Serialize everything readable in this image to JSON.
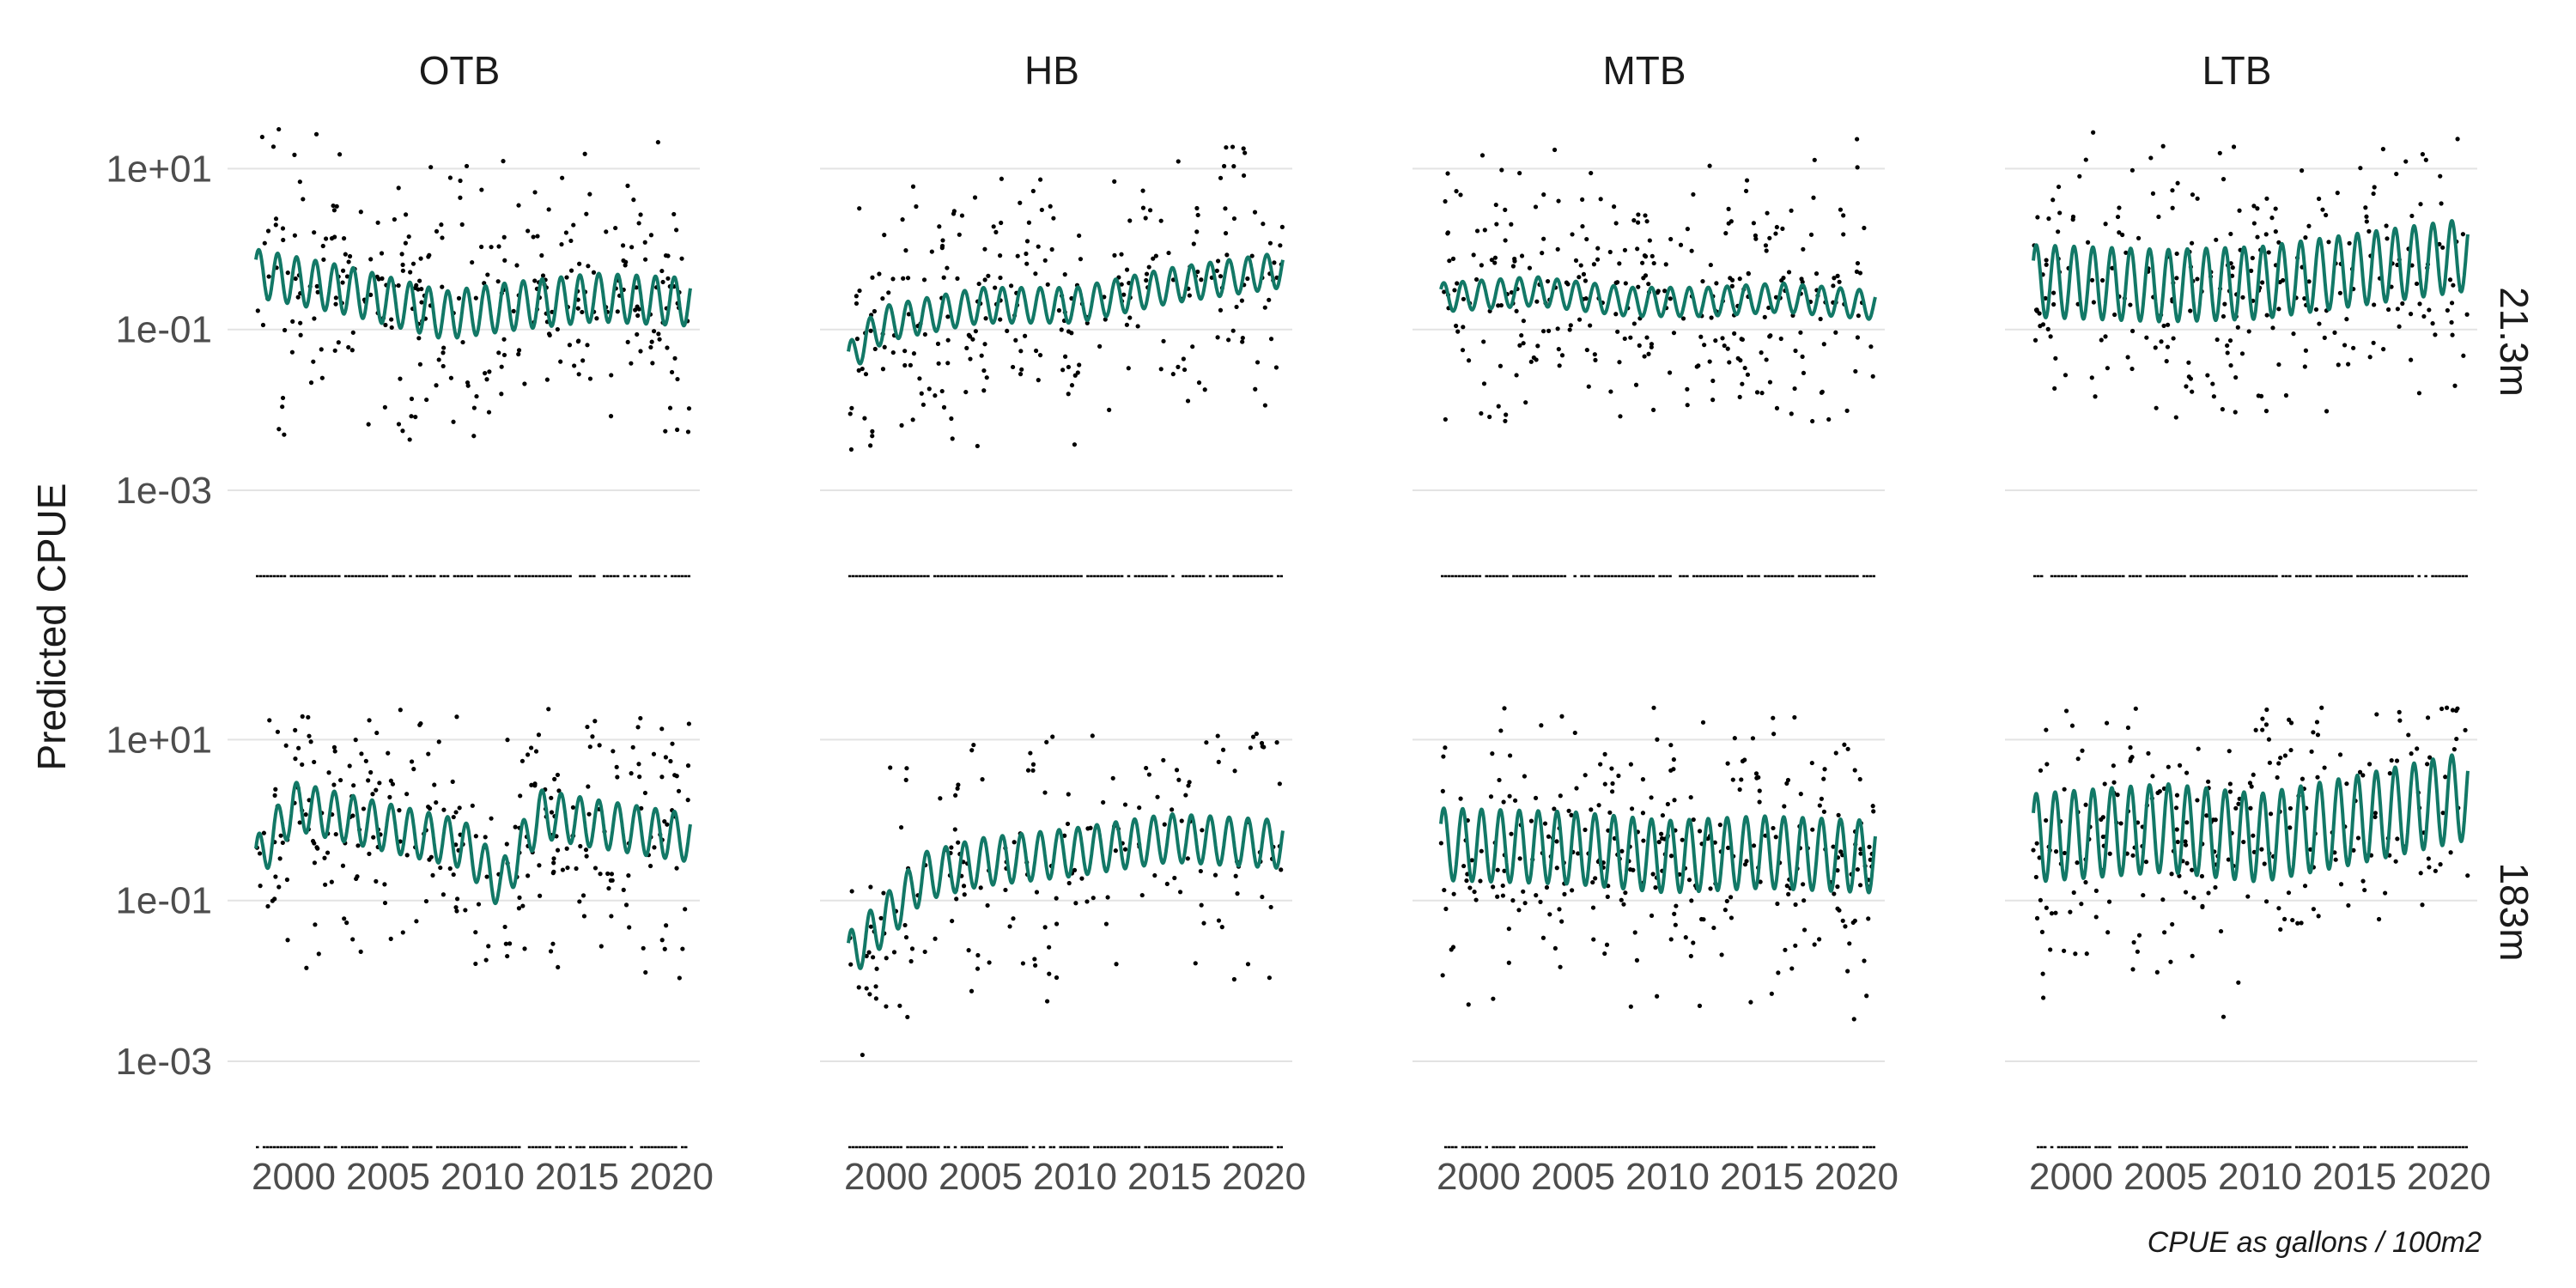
{
  "chart_data": {
    "type": "scatter",
    "ylabel": "Predicted CPUE",
    "xlabel": "",
    "caption": "CPUE as gallons / 100m2",
    "y_scale": "log10",
    "ylim": [
      4e-05,
      40
    ],
    "xlim": [
      1996.5,
      2021.5
    ],
    "x_ticks": [
      2000,
      2005,
      2010,
      2015,
      2020
    ],
    "x_tick_labels": [
      "2000",
      "2005",
      "2010",
      "2015",
      "2020"
    ],
    "y_ticks": [
      10,
      0.1,
      0.001
    ],
    "y_tick_labels": [
      "1e+01",
      "1e-01",
      "1e-03"
    ],
    "columns": [
      "OTB",
      "HB",
      "MTB",
      "LTB"
    ],
    "rows": [
      "21.3m",
      "183m"
    ],
    "grid": true,
    "legend": "none",
    "colors": {
      "fit_line": "#127866",
      "points": "#000000",
      "grid": "#e3e3e3"
    },
    "facets": [
      {
        "column": "OTB",
        "row": "21.3m",
        "x_start": 1998.0,
        "x_end": 2021.0,
        "trend": [
          [
            1998,
            0.5
          ],
          [
            2003,
            0.3
          ],
          [
            2008,
            0.15
          ],
          [
            2012,
            0.2
          ],
          [
            2016,
            0.25
          ],
          [
            2021,
            0.22
          ]
        ],
        "seasonal_amp_log10": 0.3,
        "points_range_log10": [
          -2.4,
          1.5
        ],
        "points_count": 300
      },
      {
        "column": "HB",
        "row": "21.3m",
        "x_start": 1998.0,
        "x_end": 2021.0,
        "trend": [
          [
            1998,
            0.04
          ],
          [
            1999,
            0.08
          ],
          [
            2000,
            0.12
          ],
          [
            2005,
            0.2
          ],
          [
            2010,
            0.2
          ],
          [
            2015,
            0.35
          ],
          [
            2021,
            0.55
          ]
        ],
        "seasonal_amp_log10": 0.22,
        "points_range_log10": [
          -2.5,
          1.3
        ],
        "points_count": 260
      },
      {
        "column": "MTB",
        "row": "21.3m",
        "x_start": 1998.0,
        "x_end": 2021.0,
        "trend": [
          [
            1998,
            0.25
          ],
          [
            2003,
            0.3
          ],
          [
            2008,
            0.22
          ],
          [
            2012,
            0.22
          ],
          [
            2016,
            0.25
          ],
          [
            2021,
            0.2
          ]
        ],
        "seasonal_amp_log10": 0.18,
        "points_range_log10": [
          -2.2,
          1.5
        ],
        "points_count": 300
      },
      {
        "column": "LTB",
        "row": "21.3m",
        "x_start": 1998.0,
        "x_end": 2021.0,
        "trend": [
          [
            1998,
            0.4
          ],
          [
            2005,
            0.35
          ],
          [
            2010,
            0.38
          ],
          [
            2015,
            0.55
          ],
          [
            2021,
            0.85
          ]
        ],
        "seasonal_amp_log10": 0.45,
        "points_range_log10": [
          -2.1,
          1.5
        ],
        "points_count": 260
      },
      {
        "column": "OTB",
        "row": "183m",
        "x_start": 1998.0,
        "x_end": 2021.0,
        "trend": [
          [
            1998,
            0.3
          ],
          [
            2000,
            1.5
          ],
          [
            2005,
            0.8
          ],
          [
            2009,
            0.5
          ],
          [
            2011,
            0.15
          ],
          [
            2013,
            1.2
          ],
          [
            2016,
            0.9
          ],
          [
            2021,
            0.6
          ]
        ],
        "seasonal_amp_log10": 0.3,
        "points_range_log10": [
          -3.3,
          1.4
        ],
        "points_count": 280
      },
      {
        "column": "HB",
        "row": "183m",
        "x_start": 1998.0,
        "x_end": 2021.0,
        "trend": [
          [
            1998,
            0.02
          ],
          [
            2000,
            0.06
          ],
          [
            2002,
            0.2
          ],
          [
            2005,
            0.3
          ],
          [
            2010,
            0.4
          ],
          [
            2015,
            0.6
          ],
          [
            2021,
            0.5
          ]
        ],
        "seasonal_amp_log10": 0.3,
        "points_range_log10": [
          -3.0,
          1.1
        ],
        "points_count": 180
      },
      {
        "column": "MTB",
        "row": "183m",
        "x_start": 1998.0,
        "x_end": 2021.0,
        "trend": [
          [
            1998,
            0.5
          ],
          [
            2005,
            0.45
          ],
          [
            2010,
            0.35
          ],
          [
            2015,
            0.4
          ],
          [
            2021,
            0.35
          ]
        ],
        "seasonal_amp_log10": 0.45,
        "points_range_log10": [
          -3.2,
          1.4
        ],
        "points_count": 300
      },
      {
        "column": "LTB",
        "row": "183m",
        "x_start": 1998.0,
        "x_end": 2021.0,
        "trend": [
          [
            1998,
            0.6
          ],
          [
            2005,
            0.8
          ],
          [
            2010,
            0.6
          ],
          [
            2015,
            1.0
          ],
          [
            2021,
            2.0
          ]
        ],
        "seasonal_amp_log10": 0.55,
        "points_range_log10": [
          -2.7,
          1.4
        ],
        "points_count": 260
      }
    ]
  }
}
